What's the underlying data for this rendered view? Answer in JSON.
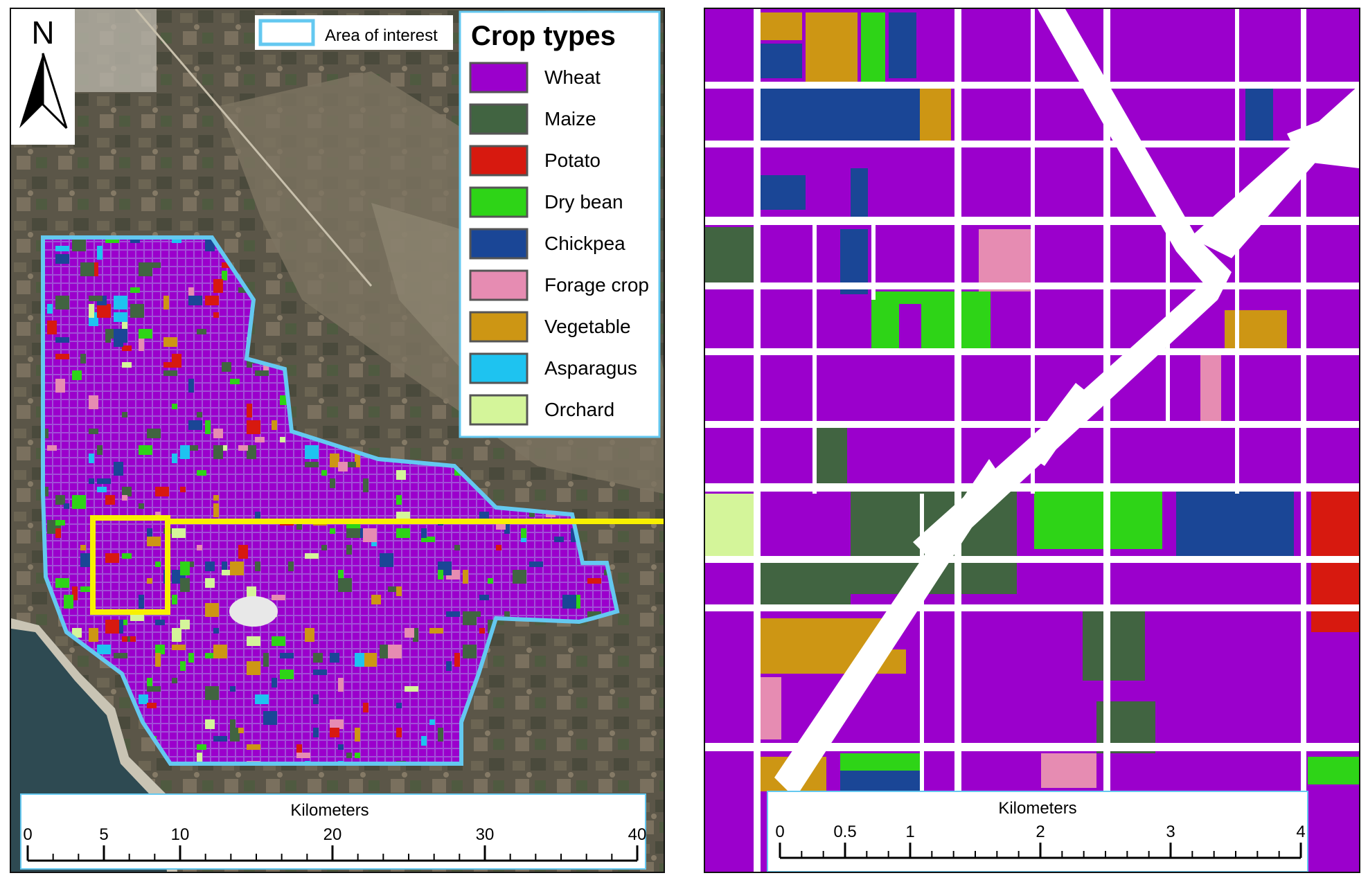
{
  "north_arrow": {
    "letter": "N"
  },
  "aoi_legend": {
    "label": "Area of interest",
    "color": "#64c8f0"
  },
  "crop_legend": {
    "title": "Crop types",
    "items": [
      {
        "label": "Wheat",
        "color": "#9b00cc"
      },
      {
        "label": "Maize",
        "color": "#416441"
      },
      {
        "label": "Potato",
        "color": "#d7190f"
      },
      {
        "label": "Dry bean",
        "color": "#2ed417"
      },
      {
        "label": "Chickpea",
        "color": "#1a4696"
      },
      {
        "label": "Forage crop",
        "color": "#e68cb2"
      },
      {
        "label": "Vegetable",
        "color": "#cd9614"
      },
      {
        "label": "Asparagus",
        "color": "#1ec3f0"
      },
      {
        "label": "Orchard",
        "color": "#d4f59a"
      }
    ]
  },
  "highlight": {
    "color": "#f8f000"
  },
  "left_scalebar": {
    "title": "Kilometers",
    "ticks": [
      "0",
      "5",
      "10",
      "20",
      "30",
      "40"
    ]
  },
  "right_scalebar": {
    "title": "Kilometers",
    "ticks": [
      "0",
      "0.5",
      "1",
      "2",
      "3",
      "4"
    ]
  }
}
